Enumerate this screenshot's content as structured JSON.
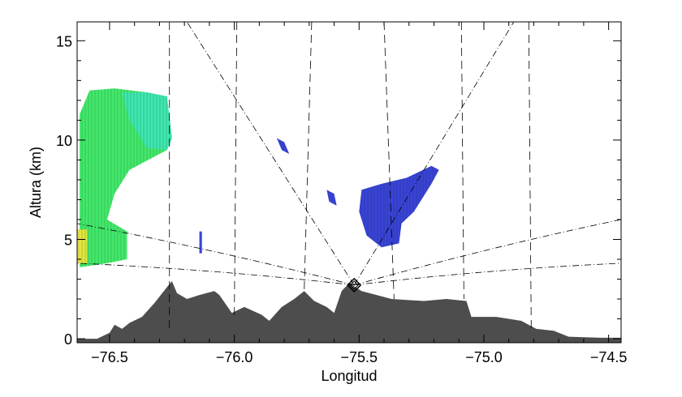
{
  "chart_data": {
    "type": "area",
    "title": "",
    "xlabel": "Longitud",
    "ylabel": "Altura (km)",
    "xlim": [
      -76.63,
      -74.45
    ],
    "ylim": [
      -0.2,
      15.95
    ],
    "x_ticks": [
      -76.5,
      -76.0,
      -75.5,
      -75.0,
      -74.5
    ],
    "x_tick_labels": [
      "−76.5",
      "−76.0",
      "−75.5",
      "−75.0",
      "−74.5"
    ],
    "y_ticks": [
      0,
      5,
      10,
      15
    ],
    "y_tick_labels": [
      "0",
      "5",
      "10",
      "15"
    ],
    "grid": false,
    "colors": {
      "terrain": "#4d4d4d",
      "echo_green": "#2ee65a",
      "echo_cyan": "#3ee8b8",
      "echo_yellow": "#f2e63a",
      "echo_blue": "#2230d0",
      "lines": "#000000"
    },
    "radar": {
      "lon": -75.52,
      "alt": 2.7,
      "marker": "diamond-icon"
    },
    "terrain": {
      "lon": [
        -76.63,
        -76.55,
        -76.5,
        -76.48,
        -76.45,
        -76.42,
        -76.37,
        -76.32,
        -76.27,
        -76.25,
        -76.23,
        -76.19,
        -76.14,
        -76.08,
        -76.06,
        -76.01,
        -75.96,
        -75.89,
        -75.86,
        -75.81,
        -75.76,
        -75.72,
        -75.68,
        -75.63,
        -75.6,
        -75.57,
        -75.54,
        -75.49,
        -75.37,
        -75.24,
        -75.15,
        -75.07,
        -75.05,
        -74.95,
        -74.85,
        -74.79,
        -74.72,
        -74.66,
        -74.53,
        -74.45
      ],
      "alt": [
        0,
        0,
        0.3,
        0.7,
        0.5,
        0.8,
        1.1,
        1.8,
        2.6,
        2.9,
        2.3,
        2.0,
        2.2,
        2.4,
        2.2,
        1.3,
        1.6,
        1.2,
        0.9,
        1.6,
        2.0,
        2.4,
        1.9,
        1.6,
        1.3,
        2.4,
        2.8,
        2.4,
        2.0,
        1.9,
        2.0,
        1.9,
        1.1,
        1.1,
        0.9,
        0.5,
        0.4,
        0.1,
        0.05,
        0.05
      ]
    },
    "echoes": [
      {
        "color": "echo_green",
        "lon": [
          -76.62,
          -76.62,
          -76.58,
          -76.48,
          -76.35,
          -76.27,
          -76.25,
          -76.27,
          -76.42,
          -76.48,
          -76.51,
          -76.43,
          -76.43,
          -76.51,
          -76.62
        ],
        "alt": [
          6.0,
          11.3,
          12.5,
          12.6,
          12.4,
          12.2,
          10.1,
          9.5,
          8.5,
          7.3,
          6.0,
          5.4,
          4.0,
          3.8,
          3.6
        ]
      },
      {
        "color": "echo_cyan",
        "lon": [
          -76.45,
          -76.35,
          -76.27,
          -76.25,
          -76.27,
          -76.35,
          -76.42
        ],
        "alt": [
          12.4,
          12.4,
          12.2,
          10.1,
          9.5,
          9.6,
          11.0
        ]
      },
      {
        "color": "echo_yellow",
        "lon": [
          -76.63,
          -76.59,
          -76.59,
          -76.63
        ],
        "alt": [
          5.5,
          5.5,
          3.8,
          3.8
        ]
      },
      {
        "color": "echo_blue",
        "lon": [
          -75.49,
          -75.41,
          -75.31,
          -75.21,
          -75.18,
          -75.21,
          -75.28,
          -75.33,
          -75.34,
          -75.41,
          -75.47,
          -75.5
        ],
        "alt": [
          7.5,
          7.8,
          8.1,
          8.7,
          8.5,
          7.8,
          6.4,
          5.8,
          4.8,
          4.6,
          5.2,
          6.4
        ]
      },
      {
        "color": "echo_blue",
        "lon": [
          -75.63,
          -75.6,
          -75.59,
          -75.62
        ],
        "alt": [
          7.5,
          7.3,
          6.7,
          6.9
        ]
      },
      {
        "color": "echo_blue",
        "lon": [
          -75.83,
          -75.8,
          -75.78,
          -75.81
        ],
        "alt": [
          10.1,
          9.9,
          9.3,
          9.5
        ]
      },
      {
        "color": "echo_blue",
        "lon": [
          -76.14,
          -76.13,
          -76.13,
          -76.14
        ],
        "alt": [
          5.4,
          5.4,
          4.3,
          4.3
        ]
      }
    ],
    "dashed_lines": [
      {
        "lon_top": -76.26,
        "lon_bottom": -76.26,
        "alt_bottom": 0.3
      },
      {
        "lon_top": -75.99,
        "lon_bottom": -76.0,
        "alt_bottom": 1.2
      },
      {
        "lon_top": -75.69,
        "lon_bottom": -75.72,
        "alt_bottom": 2.4
      },
      {
        "lon_top": -75.4,
        "lon_bottom": -75.36,
        "alt_bottom": 2.0
      },
      {
        "lon_top": -75.09,
        "lon_bottom": -75.08,
        "alt_bottom": 2.0
      },
      {
        "lon_top": -74.82,
        "lon_bottom": -74.81,
        "alt_bottom": 0.3
      },
      {
        "lon_top": -74.45,
        "lon_bottom": -74.45,
        "alt_bottom": 0.0
      }
    ],
    "beam_lines": [
      {
        "lon": -76.19,
        "alt": 15.95
      },
      {
        "lon": -74.88,
        "alt": 15.95
      },
      {
        "lon": -74.45,
        "alt": 6.0
      },
      {
        "lon": -74.45,
        "alt": 3.8
      },
      {
        "lon": -76.63,
        "alt": 5.8
      },
      {
        "lon": -76.63,
        "alt": 3.8
      }
    ]
  }
}
